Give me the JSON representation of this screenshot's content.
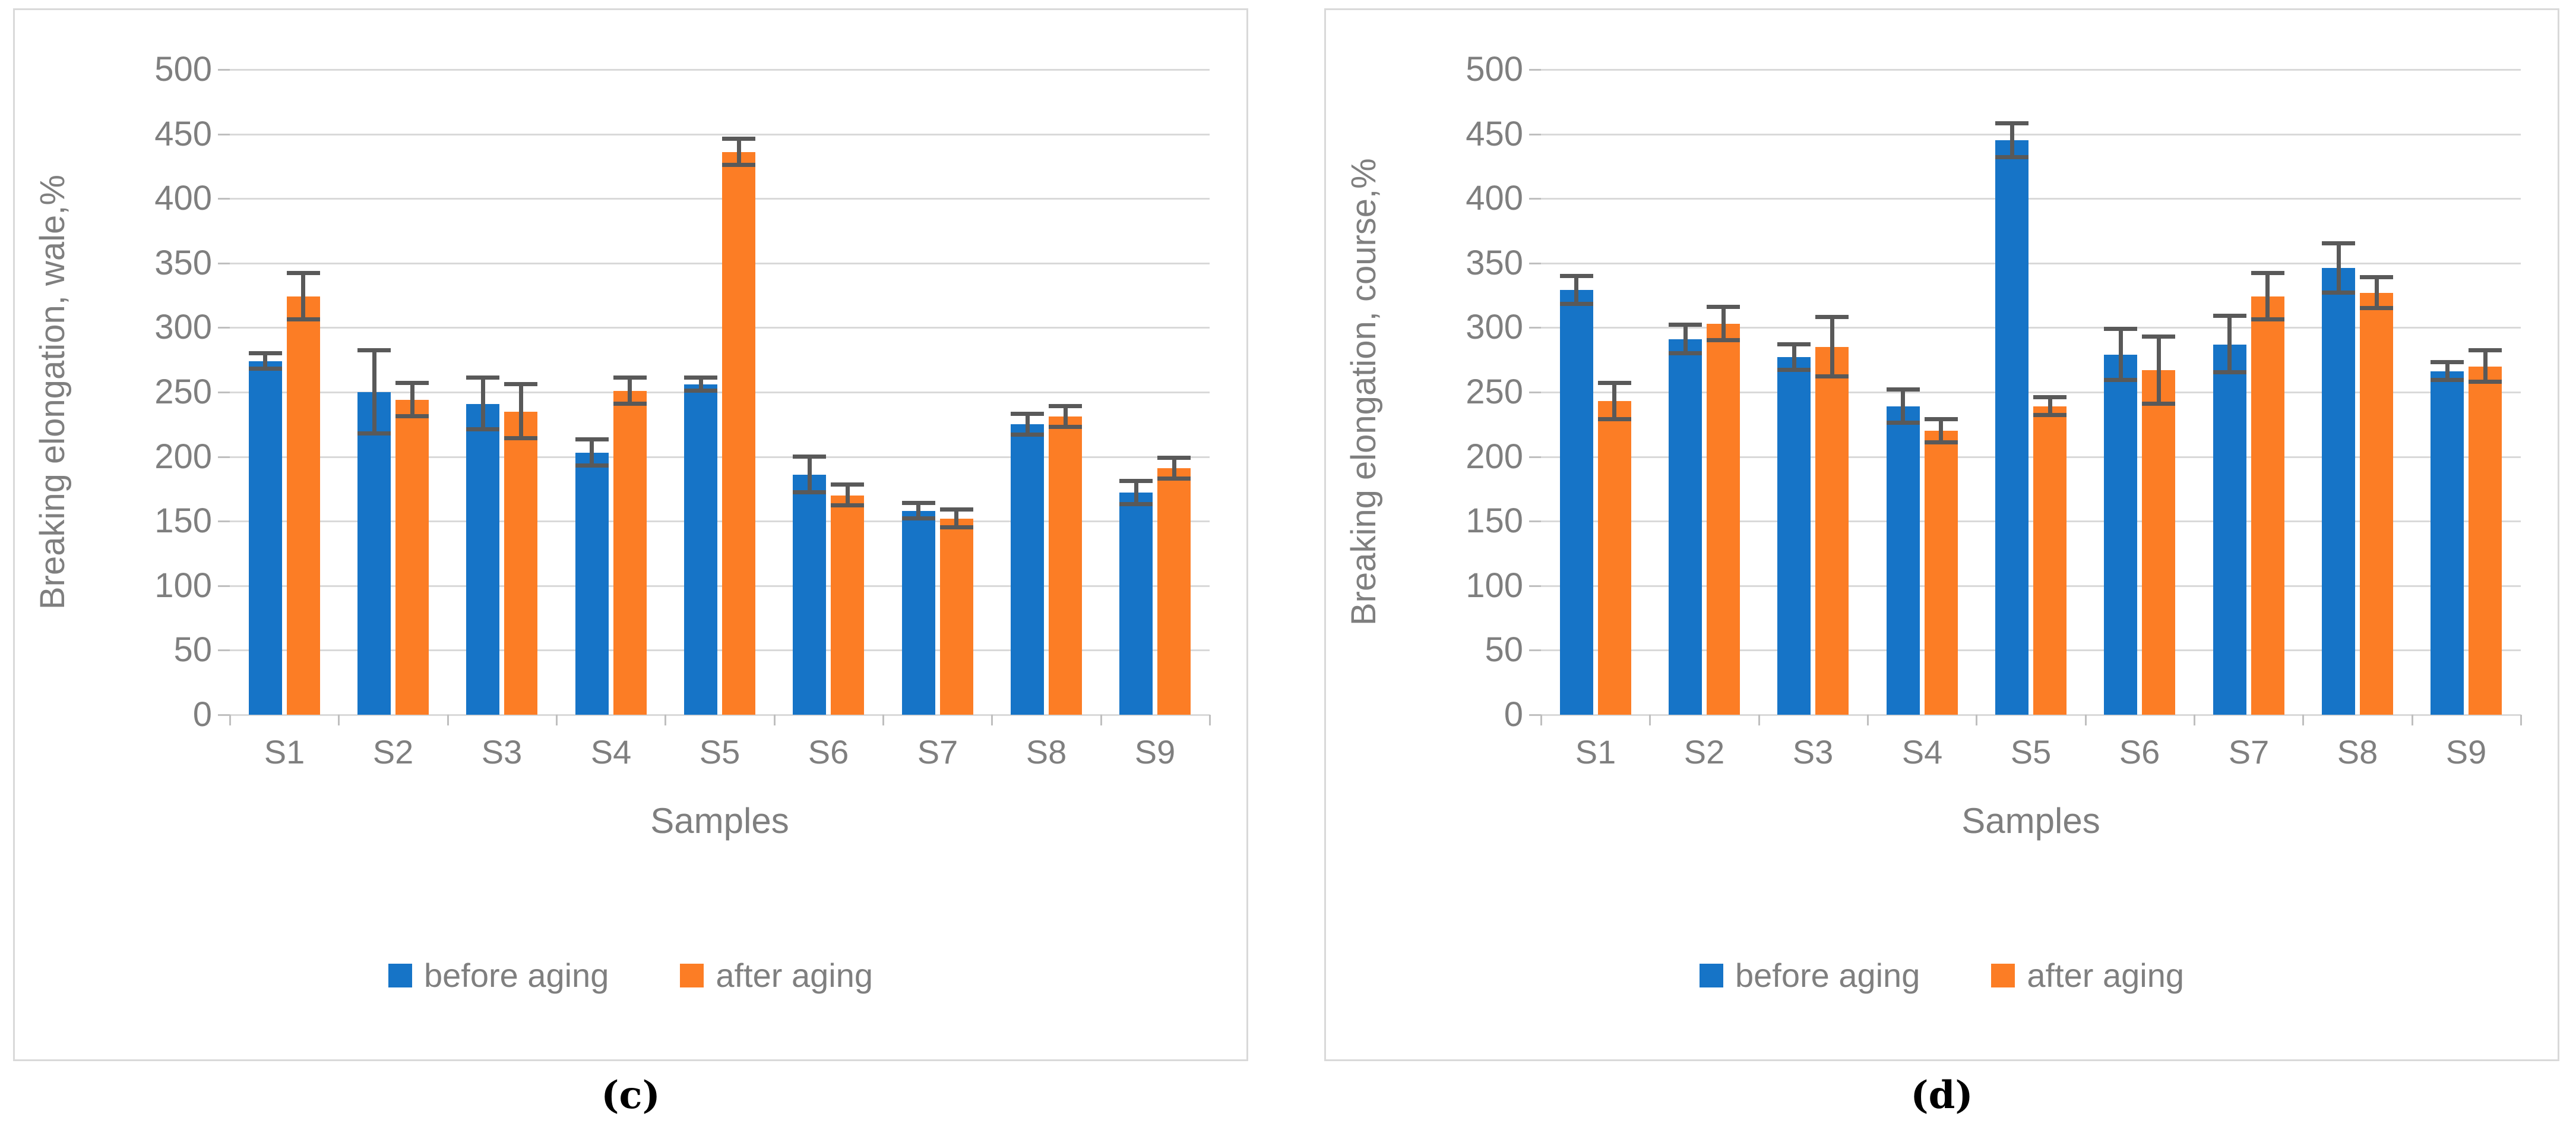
{
  "colors": {
    "before_aging": "#1674C7",
    "after_aging": "#FC7D25",
    "error_bar": "#595959",
    "gridline": "#D9D9D9",
    "axis_tick": "#BFBFBF",
    "axis_text": "#7F7F7F",
    "panel_border": "#D9D9D9",
    "caption_text": "#000000"
  },
  "legend": {
    "before_label": "before aging",
    "after_label": "after aging"
  },
  "chart_data": [
    {
      "id": "c",
      "type": "bar",
      "caption": "(c)",
      "xlabel": "Samples",
      "ylabel": "Breaking elongation, wale,%",
      "ylim": [
        0,
        500
      ],
      "ytick_step": 50,
      "grid": true,
      "legend_position": "bottom",
      "categories": [
        "S1",
        "S2",
        "S3",
        "S4",
        "S5",
        "S6",
        "S7",
        "S8",
        "S9"
      ],
      "series": [
        {
          "name": "before aging",
          "color_key": "before_aging",
          "values": [
            274,
            250,
            241,
            203,
            256,
            186,
            158,
            225,
            172
          ],
          "errors": [
            6,
            32,
            20,
            10,
            5,
            14,
            6,
            8,
            9
          ]
        },
        {
          "name": "after aging",
          "color_key": "after_aging",
          "values": [
            324,
            244,
            235,
            251,
            436,
            170,
            152,
            231,
            191
          ],
          "errors": [
            18,
            13,
            21,
            10,
            10,
            8,
            7,
            8,
            8
          ]
        }
      ]
    },
    {
      "id": "d",
      "type": "bar",
      "caption": "(d)",
      "xlabel": "Samples",
      "ylabel": "Breaking elongation, course,%",
      "ylim": [
        0,
        500
      ],
      "ytick_step": 50,
      "grid": true,
      "legend_position": "bottom",
      "categories": [
        "S1",
        "S2",
        "S3",
        "S4",
        "S5",
        "S6",
        "S7",
        "S8",
        "S9"
      ],
      "series": [
        {
          "name": "before aging",
          "color_key": "before_aging",
          "values": [
            329,
            291,
            277,
            239,
            445,
            279,
            287,
            346,
            266
          ],
          "errors": [
            11,
            11,
            10,
            13,
            13,
            20,
            22,
            19,
            7
          ]
        },
        {
          "name": "after aging",
          "color_key": "after_aging",
          "values": [
            243,
            303,
            285,
            220,
            239,
            267,
            324,
            327,
            270
          ],
          "errors": [
            14,
            13,
            23,
            9,
            7,
            26,
            18,
            12,
            12
          ]
        }
      ]
    }
  ]
}
